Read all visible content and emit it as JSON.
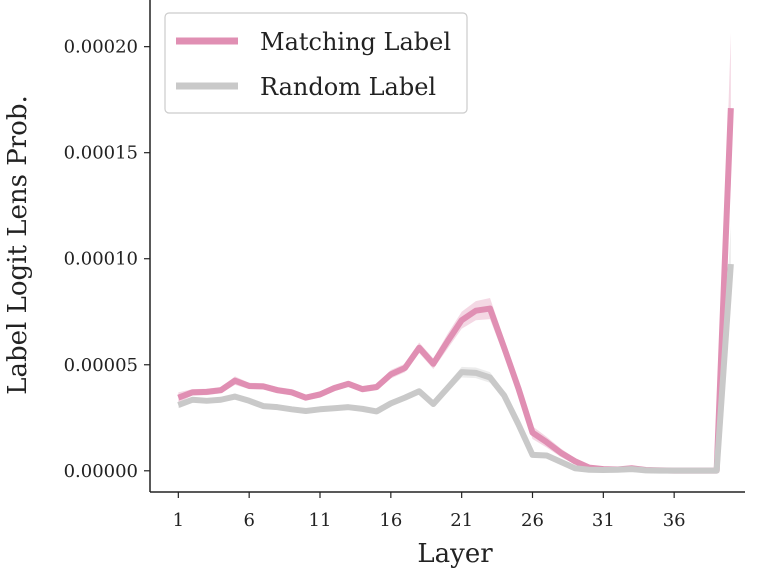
{
  "chart_data": {
    "type": "line",
    "xlabel": "Layer",
    "ylabel": "Label Logit Lens Prob.",
    "xlim": [
      -1,
      41
    ],
    "ylim": [
      -1e-05,
      0.000222
    ],
    "xticks": [
      1,
      6,
      11,
      16,
      21,
      26,
      31,
      36
    ],
    "xtick_labels": [
      "1",
      "6",
      "11",
      "16",
      "21",
      "26",
      "31",
      "36"
    ],
    "yticks": [
      0.0,
      5e-05,
      0.0001,
      0.00015,
      0.0002
    ],
    "ytick_labels": [
      "0.00000",
      "0.00005",
      "0.00010",
      "0.00015",
      "0.00020"
    ],
    "grid": false,
    "legend_position": "top-left",
    "x": [
      1,
      2,
      3,
      4,
      5,
      6,
      7,
      8,
      9,
      10,
      11,
      12,
      13,
      14,
      15,
      16,
      17,
      18,
      19,
      20,
      21,
      22,
      23,
      24,
      25,
      26,
      27,
      28,
      29,
      30,
      31,
      32,
      33,
      34,
      35,
      36,
      37,
      38,
      39,
      40
    ],
    "series": [
      {
        "name": "Matching Label",
        "color": "#e08fb3",
        "values": [
          3.45e-05,
          3.7e-05,
          3.72e-05,
          3.8e-05,
          4.25e-05,
          4e-05,
          3.98e-05,
          3.8e-05,
          3.7e-05,
          3.45e-05,
          3.6e-05,
          3.9e-05,
          4.1e-05,
          3.85e-05,
          3.95e-05,
          4.55e-05,
          4.85e-05,
          5.8e-05,
          5.05e-05,
          6.1e-05,
          7.1e-05,
          7.55e-05,
          7.65e-05,
          5.8e-05,
          3.9e-05,
          1.8e-05,
          1.35e-05,
          8.5e-06,
          4.5e-06,
          1.5e-06,
          8e-07,
          6e-07,
          1.2e-06,
          4e-07,
          2e-07,
          1e-07,
          1e-07,
          1e-07,
          1e-07,
          0.000171
        ],
        "band": [
          2.5e-06,
          1.5e-06,
          1.5e-06,
          1.5e-06,
          2e-06,
          1.5e-06,
          1.5e-06,
          1.5e-06,
          1.5e-06,
          1.5e-06,
          1.5e-06,
          1.5e-06,
          1.5e-06,
          1.5e-06,
          1.5e-06,
          2e-06,
          2e-06,
          2.5e-06,
          2.5e-06,
          3.5e-06,
          4e-06,
          4.5e-06,
          5e-06,
          4e-06,
          3e-06,
          3e-06,
          2.5e-06,
          2e-06,
          1.5e-06,
          1e-06,
          5e-07,
          5e-07,
          5e-07,
          3e-07,
          2e-07,
          1e-07,
          1e-07,
          1e-07,
          1e-07,
          3.55e-05
        ]
      },
      {
        "name": "Random Label",
        "color": "#c9c9c9",
        "values": [
          3.1e-05,
          3.35e-05,
          3.3e-05,
          3.35e-05,
          3.5e-05,
          3.3e-05,
          3.05e-05,
          3e-05,
          2.9e-05,
          2.82e-05,
          2.9e-05,
          2.95e-05,
          3e-05,
          2.92e-05,
          2.8e-05,
          3.18e-05,
          3.45e-05,
          3.75e-05,
          3.15e-05,
          3.9e-05,
          4.65e-05,
          4.62e-05,
          4.4e-05,
          3.55e-05,
          2.2e-05,
          7.5e-06,
          7.2e-06,
          4.2e-06,
          1.2e-06,
          5e-07,
          4e-07,
          5e-07,
          8e-07,
          2e-07,
          1e-07,
          1e-07,
          1e-07,
          1e-07,
          1e-07,
          9.75e-05
        ],
        "band": [
          1.5e-06,
          1e-06,
          1e-06,
          1e-06,
          1.5e-06,
          1e-06,
          1e-06,
          1e-06,
          1e-06,
          1e-06,
          1e-06,
          1e-06,
          1e-06,
          1e-06,
          1e-06,
          1e-06,
          1.5e-06,
          1.5e-06,
          1.5e-06,
          2e-06,
          2.5e-06,
          2.5e-06,
          2.5e-06,
          2e-06,
          1.5e-06,
          1e-06,
          1e-06,
          1e-06,
          5e-07,
          3e-07,
          2e-07,
          2e-07,
          2e-07,
          1e-07,
          1e-07,
          1e-07,
          1e-07,
          1e-07,
          1e-07,
          1.8e-05
        ]
      }
    ]
  }
}
